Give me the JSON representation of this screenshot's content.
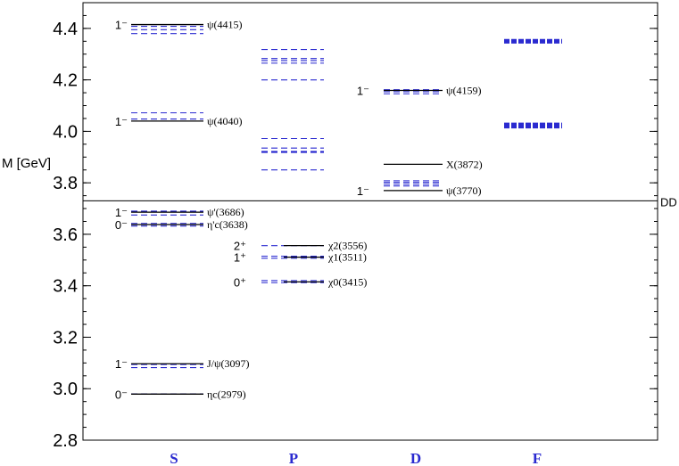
{
  "chart_data": {
    "type": "level-diagram",
    "ylabel": "M [GeV]",
    "ylim": [
      2.8,
      4.5
    ],
    "yticks": [
      "2.8",
      "3.0",
      "3.2",
      "3.4",
      "3.6",
      "3.8",
      "4.0",
      "4.2",
      "4.4"
    ],
    "categories": [
      "S",
      "P",
      "D",
      "F"
    ],
    "threshold": {
      "label": "DD",
      "value": 3.73
    },
    "colors": {
      "experiment": "#000000",
      "theory": "#2a2ad0",
      "category": "#2a2ad0"
    },
    "experimental": [
      {
        "column": "S",
        "mass": 4.415,
        "label": "ψ(4415)",
        "jp": "1⁻"
      },
      {
        "column": "S",
        "mass": 4.04,
        "label": "ψ(4040)",
        "jp": "1⁻"
      },
      {
        "column": "S",
        "mass": 3.686,
        "label": "ψ'(3686)",
        "jp": "1⁻"
      },
      {
        "column": "S",
        "mass": 3.638,
        "label": "η'c(3638)",
        "jp": "0⁻"
      },
      {
        "column": "S",
        "mass": 3.097,
        "label": "J/ψ(3097)",
        "jp": "1⁻"
      },
      {
        "column": "S",
        "mass": 2.979,
        "label": "ηc(2979)",
        "jp": "0⁻"
      },
      {
        "column": "P",
        "mass": 3.556,
        "label": "χ2(3556)",
        "jp": "2⁺"
      },
      {
        "column": "P",
        "mass": 3.511,
        "label": "χ1(3511)",
        "jp": "1⁺"
      },
      {
        "column": "P",
        "mass": 3.415,
        "label": "χ0(3415)",
        "jp": "0⁺"
      },
      {
        "column": "D",
        "mass": 4.159,
        "label": "ψ(4159)",
        "jp": "1⁻"
      },
      {
        "column": "D",
        "mass": 3.872,
        "label": "X(3872)",
        "jp": ""
      },
      {
        "column": "D",
        "mass": 3.77,
        "label": "ψ(3770)",
        "jp": "1⁻"
      }
    ],
    "theory": [
      {
        "column": "S",
        "masses": [
          4.408,
          4.395,
          4.38,
          4.072,
          4.048,
          3.69,
          3.675,
          3.642,
          3.632,
          3.094,
          3.082,
          2.98
        ]
      },
      {
        "column": "P",
        "masses": [
          4.318,
          4.283,
          4.275,
          4.265,
          4.2,
          3.972,
          3.935,
          3.922,
          3.918,
          3.85,
          3.556,
          3.515,
          3.507,
          3.42,
          3.412
        ]
      },
      {
        "column": "D",
        "masses": [
          4.162,
          4.154,
          4.146,
          3.808,
          3.802,
          3.795,
          3.788
        ]
      },
      {
        "column": "F",
        "masses": [
          4.355,
          4.35,
          4.345,
          4.03,
          4.025,
          4.02,
          4.015
        ]
      }
    ]
  }
}
